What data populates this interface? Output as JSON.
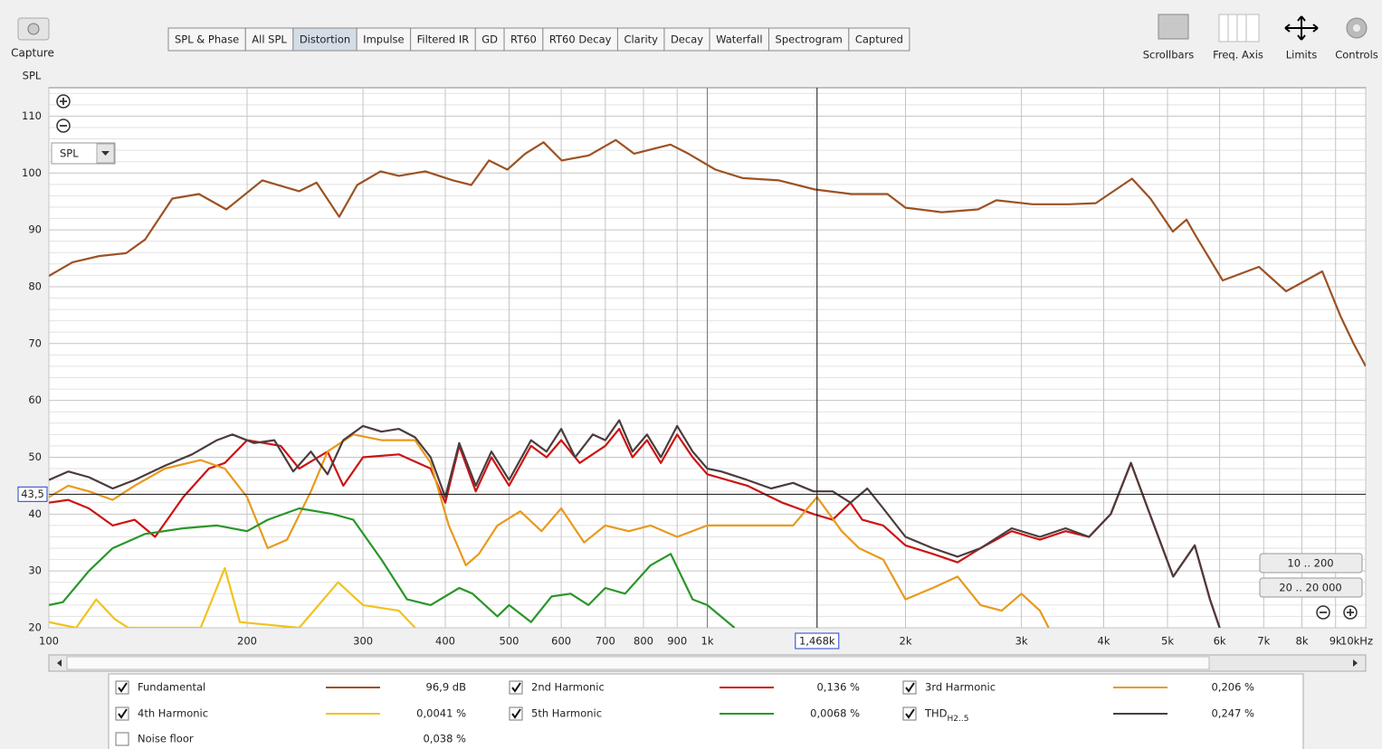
{
  "toolbar": {
    "capture": "Capture",
    "tabs": [
      {
        "label": "SPL & Phase"
      },
      {
        "label": "All SPL"
      },
      {
        "label": "Distortion",
        "active": true
      },
      {
        "label": "Impulse"
      },
      {
        "label": "Filtered IR"
      },
      {
        "label": "GD"
      },
      {
        "label": "RT60"
      },
      {
        "label": "RT60 Decay"
      },
      {
        "label": "Clarity"
      },
      {
        "label": "Decay"
      },
      {
        "label": "Waterfall"
      },
      {
        "label": "Spectrogram"
      },
      {
        "label": "Captured"
      }
    ],
    "right_buttons": [
      "Scrollbars",
      "Freq. Axis",
      "Limits",
      "Controls"
    ]
  },
  "chart_data": {
    "type": "line",
    "y_label": "SPL",
    "selector": "SPL",
    "log_x": true,
    "grid": true,
    "xlim": [
      100,
      10000
    ],
    "ylim": [
      20,
      115
    ],
    "xticks": [
      100,
      200,
      300,
      400,
      500,
      600,
      700,
      800,
      900,
      {
        "value": 1000,
        "label": "1k"
      },
      {
        "value": 2000,
        "label": "2k"
      },
      {
        "value": 3000,
        "label": "3k"
      },
      {
        "value": 4000,
        "label": "4k"
      },
      {
        "value": 5000,
        "label": "5k"
      },
      {
        "value": 6000,
        "label": "6k"
      },
      {
        "value": 7000,
        "label": "7k"
      },
      {
        "value": 8000,
        "label": "8k"
      },
      {
        "value": 9000,
        "label": "9k"
      },
      {
        "value": 10000,
        "label": "10kHz"
      }
    ],
    "yticks": [
      20,
      30,
      40,
      50,
      60,
      70,
      80,
      90,
      100,
      110
    ],
    "yminorticks": [
      22,
      24,
      26,
      28,
      32,
      34,
      36,
      38,
      42,
      44,
      46,
      48,
      52,
      54,
      56,
      58,
      62,
      64,
      66,
      68,
      72,
      74,
      76,
      78,
      82,
      84,
      86,
      88,
      92,
      94,
      96,
      98,
      102,
      104,
      106,
      108,
      112,
      114
    ],
    "cursor_x": {
      "value": 1468,
      "label": "1,468k"
    },
    "cursor_y": {
      "value": 43.5,
      "label": "43,5"
    },
    "range_buttons": [
      "10 .. 200",
      "20 .. 20 000"
    ],
    "series": [
      {
        "name": "Fundamental",
        "color": "#9c5224",
        "readout": "96,9 dB",
        "checked": true,
        "x": [
          100,
          108.6,
          119.4,
          131,
          140,
          154,
          169,
          186,
          211,
          240,
          255,
          276,
          294,
          319,
          340,
          373,
          411,
          438,
          466,
          497,
          529,
          564,
          601,
          661,
          726,
          774,
          824,
          879,
          936,
          1029,
          1132,
          1285,
          1458,
          1655,
          1878,
          2000,
          2271,
          2577,
          2748,
          3119,
          3540,
          3890,
          4416,
          4710,
          5094,
          5343,
          5510,
          6064,
          6883,
          7570,
          8590,
          9158,
          9594,
          10000
        ],
        "values": [
          81.9,
          84.3,
          85.4,
          85.9,
          88.3,
          95.5,
          96.3,
          93.6,
          98.7,
          96.8,
          98.3,
          92.3,
          97.9,
          100.3,
          99.5,
          100.3,
          98.7,
          97.9,
          102.2,
          100.6,
          103.4,
          105.4,
          102.2,
          103.1,
          105.8,
          103.4,
          104.2,
          105.0,
          103.4,
          100.6,
          99.1,
          98.7,
          97.1,
          96.3,
          96.3,
          93.9,
          93.1,
          93.6,
          95.2,
          94.5,
          94.5,
          94.7,
          99.0,
          95.5,
          89.7,
          91.8,
          89.1,
          81.1,
          83.5,
          79.2,
          82.7,
          74.8,
          69.9,
          66.0
        ]
      },
      {
        "name": "2nd Harmonic",
        "color": "#cc1414",
        "readout": "0,136 %",
        "checked": true,
        "x": [
          100,
          107,
          115,
          125,
          135,
          145,
          160,
          175,
          185,
          200,
          225,
          240,
          265,
          280,
          300,
          340,
          380,
          400,
          420,
          445,
          470,
          500,
          540,
          570,
          600,
          640,
          700,
          735,
          770,
          810,
          850,
          900,
          950,
          1000,
          1150,
          1300,
          1450,
          1550,
          1650,
          1720,
          1850,
          2000,
          2200,
          2400,
          2600,
          2900,
          3200,
          3500,
          3800,
          4100,
          4400,
          4700,
          5100,
          5500,
          5800,
          6000
        ],
        "values": [
          42,
          42.5,
          41,
          38,
          39,
          36,
          43,
          48,
          49,
          53,
          52,
          48,
          51,
          45,
          50,
          50.5,
          48,
          42,
          52,
          44,
          50,
          45,
          52,
          50,
          53,
          49,
          52,
          55,
          50,
          53,
          49,
          54,
          50,
          47,
          45,
          42,
          40,
          39,
          42,
          39,
          38,
          34.5,
          33,
          31.5,
          34,
          37,
          35.5,
          37,
          36,
          40,
          49,
          40,
          29,
          34.5,
          25,
          20
        ]
      },
      {
        "name": "3rd Harmonic",
        "color": "#e89a1c",
        "readout": "0,206 %",
        "checked": true,
        "x": [
          100,
          107,
          115,
          125,
          135,
          150,
          170,
          185,
          200,
          215,
          230,
          250,
          265,
          290,
          320,
          360,
          380,
          405,
          430,
          450,
          480,
          520,
          560,
          600,
          650,
          700,
          760,
          820,
          900,
          1000,
          1200,
          1350,
          1468,
          1600,
          1700,
          1850,
          2000,
          2200,
          2400,
          2600,
          2800,
          3000,
          3200,
          3300
        ],
        "values": [
          43,
          45,
          44,
          42.5,
          45,
          48,
          49.5,
          48,
          43,
          34,
          35.5,
          44,
          51,
          54,
          53,
          53,
          49,
          38,
          31,
          33,
          38,
          40.5,
          37,
          41,
          35,
          38,
          37,
          38,
          36,
          38,
          38,
          38,
          43,
          37,
          34,
          32,
          25,
          27,
          29,
          24,
          23,
          26,
          23,
          20
        ]
      },
      {
        "name": "4th Harmonic",
        "color": "#f2c21e",
        "readout": "0,0041 %",
        "checked": true,
        "x": [
          100,
          110,
          118,
          126,
          132,
          170,
          185,
          195,
          240,
          275,
          300,
          340,
          360
        ],
        "values": [
          21,
          20,
          25,
          21.5,
          20,
          20,
          30.5,
          21,
          20,
          28,
          24,
          23,
          20
        ]
      },
      {
        "name": "5th Harmonic",
        "color": "#2a962a",
        "readout": "0,0068 %",
        "checked": true,
        "x": [
          100,
          105,
          115,
          125,
          140,
          160,
          180,
          200,
          215,
          240,
          270,
          290,
          320,
          350,
          380,
          420,
          440,
          480,
          500,
          540,
          580,
          620,
          660,
          700,
          750,
          820,
          880,
          950,
          1000,
          1100
        ],
        "values": [
          24,
          24.5,
          30,
          34,
          36.5,
          37.5,
          38,
          37,
          39,
          41,
          40,
          39,
          32,
          25,
          24,
          27,
          26,
          22,
          24,
          21,
          25.5,
          26,
          24,
          27,
          26,
          31,
          33,
          25,
          24,
          20
        ]
      },
      {
        "name": "THD",
        "subscript": "H2..5",
        "color": "#4c3c3c",
        "readout": "0,247 %",
        "checked": true,
        "x": [
          100,
          107,
          115,
          125,
          135,
          150,
          165,
          180,
          190,
          205,
          220,
          235,
          250,
          265,
          280,
          300,
          320,
          340,
          360,
          380,
          400,
          420,
          445,
          470,
          500,
          540,
          570,
          600,
          630,
          670,
          700,
          735,
          770,
          810,
          850,
          900,
          950,
          1000,
          1050,
          1150,
          1250,
          1350,
          1450,
          1550,
          1650,
          1750,
          1850,
          2000,
          2200,
          2400,
          2600,
          2900,
          3200,
          3500,
          3800,
          4100,
          4400,
          4700,
          5100,
          5500,
          5800,
          6000
        ],
        "values": [
          46,
          47.5,
          46.5,
          44.5,
          46,
          48.5,
          50.5,
          53,
          54,
          52.5,
          53,
          47.5,
          51,
          47,
          53,
          55.5,
          54.5,
          55,
          53.5,
          50,
          43,
          52.5,
          45,
          51,
          46,
          53,
          51,
          55,
          50,
          54,
          53,
          56.5,
          51,
          54,
          50,
          55.5,
          51,
          48,
          47.5,
          46,
          44.5,
          45.5,
          44,
          44,
          42,
          44.5,
          41,
          36,
          34,
          32.5,
          34,
          37.5,
          36,
          37.5,
          36,
          40,
          49,
          40,
          29,
          34.5,
          25,
          20
        ]
      }
    ],
    "extra_legend": {
      "name": "Noise floor",
      "readout": "0,038 %",
      "checked": false
    }
  }
}
